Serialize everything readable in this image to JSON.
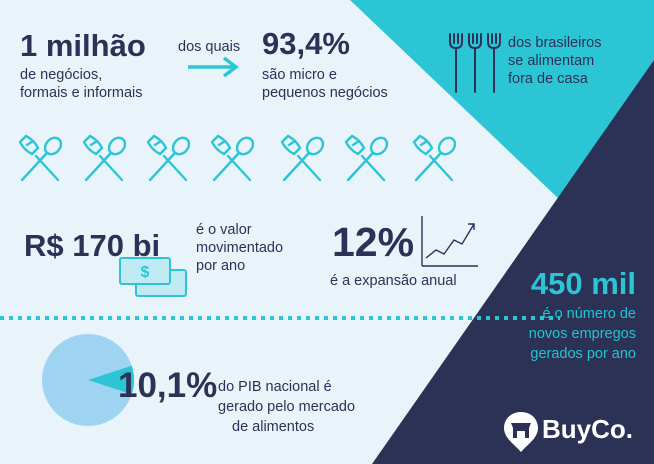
{
  "stat_businesses": {
    "value": "1 milhão",
    "caption_line1": "de negócios,",
    "caption_line2": "formais e informais",
    "connector": "dos quais"
  },
  "stat_small": {
    "value": "93,4%",
    "caption_line1": "são micro e",
    "caption_line2": "pequenos negócios"
  },
  "stat_eat_out": {
    "caption_line1": "dos brasileiros",
    "caption_line2": "se alimentam",
    "caption_line3": "fora de casa"
  },
  "stat_revenue": {
    "value": "R$ 170 bi",
    "caption_line1": "é o valor",
    "caption_line2": "movimentado",
    "caption_line3": "por ano"
  },
  "stat_growth": {
    "value": "12%",
    "caption": "é a expansão anual"
  },
  "stat_jobs": {
    "value": "450 mil",
    "caption_line1": "é o número de",
    "caption_line2": "novos empregos",
    "caption_line3": "gerados por ano"
  },
  "stat_gdp": {
    "value": "10,1%",
    "caption_line1": "do PIB nacional é",
    "caption_line2": "gerado pelo mercado",
    "caption_line3": "de alimentos",
    "pie_share": 0.101
  },
  "brand": {
    "name": "BuyCo."
  },
  "icons": [
    "cutlery-icon",
    "arrow-right-icon",
    "money-bills-icon",
    "growth-chart-icon",
    "fork-icon",
    "pie-chart-icon",
    "buyco-logo-icon"
  ],
  "colors": {
    "navy": "#2b3256",
    "cyan": "#22c3d3",
    "light_bg": "#e8f4fa",
    "light_blue": "#9fd3f2"
  }
}
